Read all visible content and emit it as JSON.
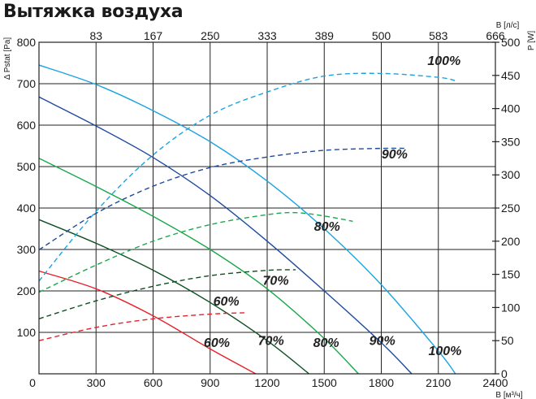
{
  "title": "Вытяжка воздуха",
  "chart_data": {
    "type": "line",
    "title": "Вытяжка воздуха",
    "xlabel": "B [м³/ч]",
    "x2label": "B [л/с]",
    "ylabel": "Δ Pstat [Pa]",
    "y2label": "P [W]",
    "xlim": [
      0,
      2400
    ],
    "ylim": [
      0,
      800
    ],
    "y2lim": [
      0,
      500
    ],
    "x_ticks": [
      "0",
      "300",
      "600",
      "900",
      "1200",
      "1500",
      "1800",
      "2100",
      "2400"
    ],
    "x2_ticks": [
      "83",
      "167",
      "250",
      "333",
      "389",
      "500",
      "583",
      "666"
    ],
    "y_ticks": [
      "0",
      "100",
      "200",
      "300",
      "400",
      "500",
      "600",
      "700",
      "800"
    ],
    "y2_ticks": [
      "0",
      "50",
      "100",
      "150",
      "200",
      "250",
      "300",
      "350",
      "400",
      "450",
      "500"
    ],
    "grid": true,
    "colors": {
      "100%": "#1aa3e0",
      "90%": "#1e4a9e",
      "80%": "#1aa84a",
      "70%": "#0f4f22",
      "60%": "#e8202a"
    },
    "series": [
      {
        "name": "100%",
        "kind": "pressure",
        "axis": "left",
        "style": "solid",
        "x": [
          0,
          300,
          600,
          900,
          1200,
          1500,
          1800,
          2100,
          2190
        ],
        "y": [
          745,
          698,
          635,
          560,
          465,
          350,
          215,
          55,
          0
        ]
      },
      {
        "name": "90%",
        "kind": "pressure",
        "axis": "left",
        "style": "solid",
        "x": [
          0,
          300,
          600,
          900,
          1200,
          1500,
          1800,
          1960
        ],
        "y": [
          668,
          598,
          522,
          430,
          320,
          200,
          75,
          0
        ]
      },
      {
        "name": "80%",
        "kind": "pressure",
        "axis": "left",
        "style": "solid",
        "x": [
          0,
          300,
          600,
          900,
          1200,
          1500,
          1680
        ],
        "y": [
          520,
          452,
          380,
          300,
          205,
          85,
          0
        ]
      },
      {
        "name": "70%",
        "kind": "pressure",
        "axis": "left",
        "style": "solid",
        "x": [
          0,
          300,
          600,
          900,
          1200,
          1420
        ],
        "y": [
          372,
          315,
          250,
          172,
          80,
          0
        ]
      },
      {
        "name": "60%",
        "kind": "pressure",
        "axis": "left",
        "style": "solid",
        "x": [
          0,
          300,
          600,
          900,
          1140
        ],
        "y": [
          248,
          205,
          140,
          60,
          0
        ]
      },
      {
        "name": "100%",
        "kind": "power",
        "axis": "right",
        "style": "dashed",
        "x": [
          0,
          300,
          600,
          900,
          1200,
          1500,
          1800,
          2100,
          2190
        ],
        "y": [
          140,
          245,
          330,
          390,
          425,
          449,
          453,
          447,
          442
        ]
      },
      {
        "name": "90%",
        "kind": "power",
        "axis": "right",
        "style": "dashed",
        "x": [
          0,
          300,
          600,
          900,
          1200,
          1500,
          1800,
          1930
        ],
        "y": [
          187,
          242,
          283,
          311,
          327,
          337,
          340,
          340
        ]
      },
      {
        "name": "80%",
        "kind": "power",
        "axis": "right",
        "style": "dashed",
        "x": [
          0,
          300,
          600,
          900,
          1200,
          1350,
          1500,
          1650
        ],
        "y": [
          123,
          164,
          200,
          225,
          240,
          243,
          238,
          230
        ]
      },
      {
        "name": "70%",
        "kind": "power",
        "axis": "right",
        "style": "dashed",
        "x": [
          0,
          300,
          600,
          900,
          1200,
          1350
        ],
        "y": [
          83,
          110,
          132,
          148,
          156,
          157
        ]
      },
      {
        "name": "60%",
        "kind": "power",
        "axis": "right",
        "style": "dashed",
        "x": [
          0,
          300,
          600,
          900,
          1080
        ],
        "y": [
          50,
          70,
          83,
          90,
          92
        ]
      }
    ],
    "curve_labels": [
      {
        "text": "100%",
        "x": 2130,
        "y": 745
      },
      {
        "text": "90%",
        "x": 1870,
        "y": 520
      },
      {
        "text": "80%",
        "x": 1515,
        "y": 345
      },
      {
        "text": "70%",
        "x": 1245,
        "y": 215
      },
      {
        "text": "60%",
        "x": 985,
        "y": 165
      },
      {
        "text": "100%",
        "x": 2135,
        "y": 45
      },
      {
        "text": "90%",
        "x": 1805,
        "y": 70
      },
      {
        "text": "80%",
        "x": 1510,
        "y": 65
      },
      {
        "text": "70%",
        "x": 1220,
        "y": 70
      },
      {
        "text": "60%",
        "x": 935,
        "y": 65
      }
    ]
  }
}
